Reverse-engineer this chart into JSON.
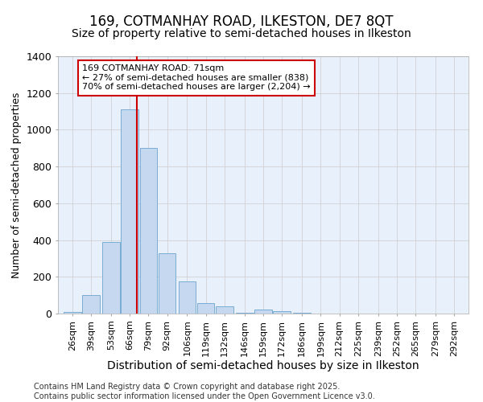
{
  "title": "169, COTMANHAY ROAD, ILKESTON, DE7 8QT",
  "subtitle": "Size of property relative to semi-detached houses in Ilkeston",
  "xlabel": "Distribution of semi-detached houses by size in Ilkeston",
  "ylabel": "Number of semi-detached properties",
  "annotation_line1": "169 COTMANHAY ROAD: 71sqm",
  "annotation_line2": "← 27% of semi-detached houses are smaller (838)",
  "annotation_line3": "70% of semi-detached houses are larger (2,204) →",
  "footnote1": "Contains HM Land Registry data © Crown copyright and database right 2025.",
  "footnote2": "Contains public sector information licensed under the Open Government Licence v3.0.",
  "property_size": 71,
  "categories": [
    26,
    39,
    53,
    66,
    79,
    92,
    106,
    119,
    132,
    146,
    159,
    172,
    186,
    199,
    212,
    225,
    239,
    252,
    265,
    279,
    292
  ],
  "tick_labels": [
    "26sqm",
    "39sqm",
    "53sqm",
    "66sqm",
    "79sqm",
    "92sqm",
    "106sqm",
    "119sqm",
    "132sqm",
    "146sqm",
    "159sqm",
    "172sqm",
    "186sqm",
    "199sqm",
    "212sqm",
    "225sqm",
    "239sqm",
    "252sqm",
    "265sqm",
    "279sqm",
    "292sqm"
  ],
  "values": [
    10,
    100,
    390,
    1110,
    900,
    330,
    175,
    55,
    40,
    5,
    20,
    15,
    5,
    2,
    0,
    0,
    0,
    0,
    0,
    0,
    0
  ],
  "bar_color": "#c5d8ef",
  "bar_edge_color": "#7aadd4",
  "vline_color": "#cc0000",
  "vline_x": 71,
  "ylim": [
    0,
    1400
  ],
  "yticks": [
    0,
    200,
    400,
    600,
    800,
    1000,
    1200,
    1400
  ],
  "grid_color": "#cccccc",
  "background_color": "#e8f0fb",
  "title_fontsize": 12,
  "subtitle_fontsize": 10,
  "xlabel_fontsize": 10,
  "ylabel_fontsize": 9,
  "tick_fontsize": 8,
  "annotation_fontsize": 8,
  "footnote_fontsize": 7
}
